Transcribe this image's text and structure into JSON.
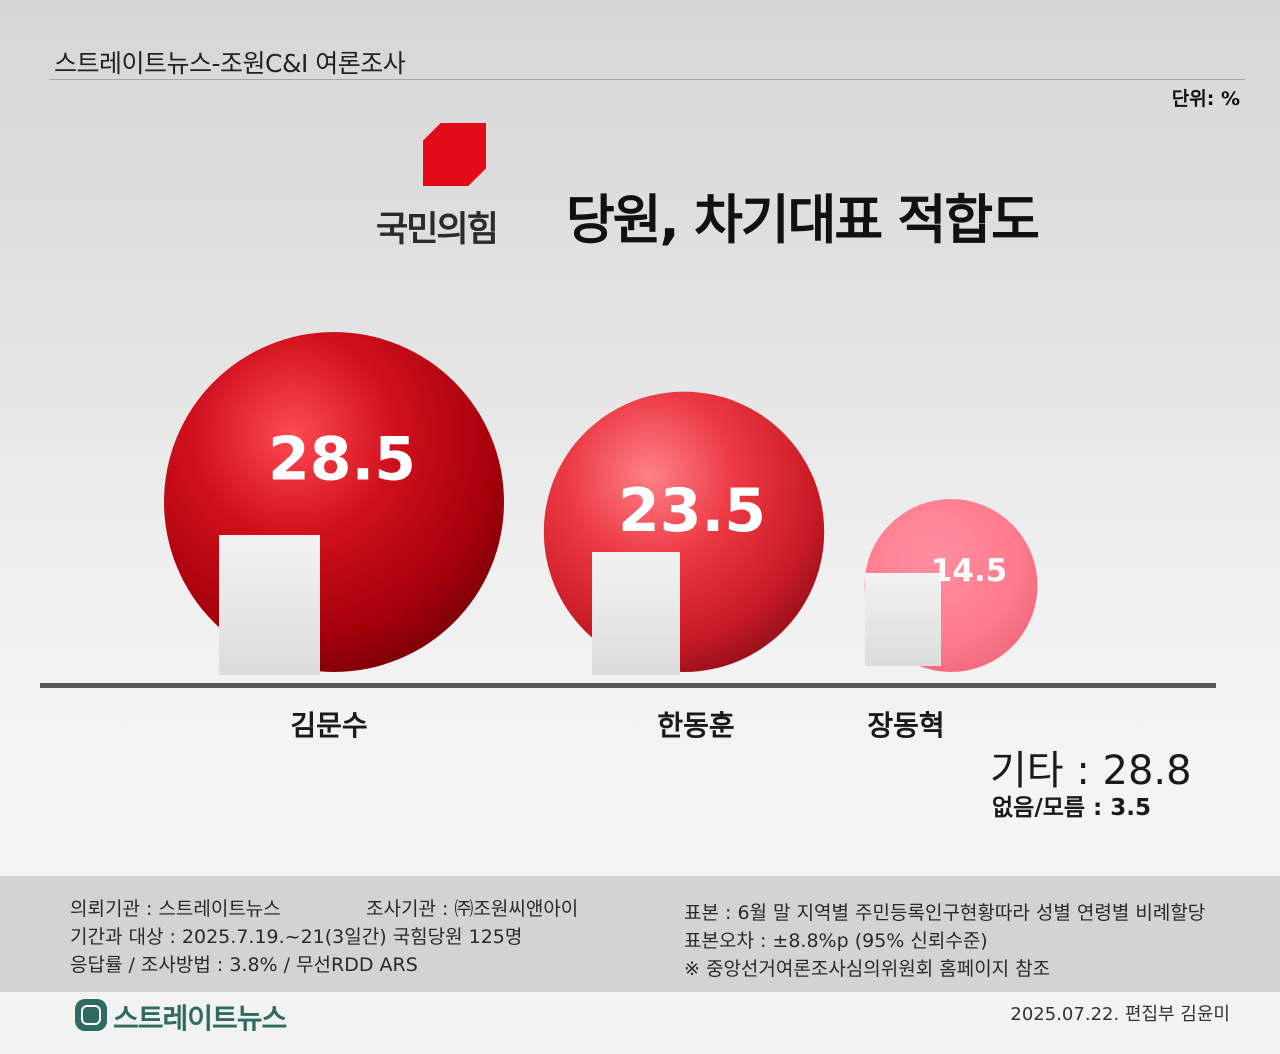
{
  "header": {
    "source": "스트레이트뉴스-조원C&I 여론조사",
    "unit": "단위: %"
  },
  "party": {
    "name": "국민의힘",
    "color": "#e30b17",
    "logo_icon": "party-mark-icon"
  },
  "title": "당원, 차기대표 적합도",
  "chart_data": {
    "type": "bubble",
    "title": "당원, 차기대표 적합도",
    "unit": "%",
    "categories": [
      "김문수",
      "한동훈",
      "장동혁"
    ],
    "values": [
      28.5,
      23.5,
      14.5
    ],
    "value_labels": [
      "28.5",
      "23.5",
      "14.5"
    ],
    "colors": [
      "#b5000c",
      "#e3242f",
      "#ff7d8f"
    ],
    "others": [
      {
        "label": "기타",
        "value": 28.8,
        "text": "기타 : 28.8"
      },
      {
        "label": "없음/모름",
        "value": 3.5,
        "text": "없음/모름 : 3.5"
      }
    ]
  },
  "footer": {
    "client": "의뢰기관 : 스트레이트뉴스",
    "agency": "조사기관 : ㈜조원씨앤아이",
    "period": "기간과 대상 : 2025.7.19.~21(3일간)   국힘당원 125명",
    "response": "응답률 / 조사방법 : 3.8% / 무선RDD ARS",
    "sample": "표본 : 6월 말 지역별 주민등록인구현황따라 성별 연령별 비례할당",
    "error": "표본오차 : ±8.8%p (95% 신뢰수준)",
    "note": "※ 중앙선거여론조사심의위원회 홈페이지 참조"
  },
  "brand": {
    "name": "스트레이트뉴스",
    "color": "#2f6b61"
  },
  "credit": "2025.07.22. 편집부 김윤미"
}
